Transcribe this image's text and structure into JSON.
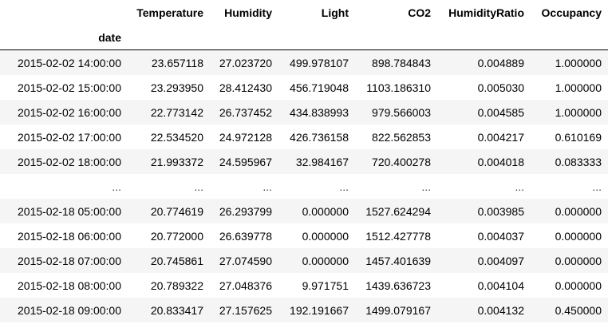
{
  "table": {
    "index_name": "date",
    "columns": [
      "Temperature",
      "Humidity",
      "Light",
      "CO2",
      "HumidityRatio",
      "Occupancy"
    ],
    "rows": [
      [
        "2015-02-02 14:00:00",
        "23.657118",
        "27.023720",
        "499.978107",
        "898.784843",
        "0.004889",
        "1.000000"
      ],
      [
        "2015-02-02 15:00:00",
        "23.293950",
        "28.412430",
        "456.719048",
        "1103.186310",
        "0.005030",
        "1.000000"
      ],
      [
        "2015-02-02 16:00:00",
        "22.773142",
        "26.737452",
        "434.838993",
        "979.566003",
        "0.004585",
        "1.000000"
      ],
      [
        "2015-02-02 17:00:00",
        "22.534520",
        "24.972128",
        "426.736158",
        "822.562853",
        "0.004217",
        "0.610169"
      ],
      [
        "2015-02-02 18:00:00",
        "21.993372",
        "24.595967",
        "32.984167",
        "720.400278",
        "0.004018",
        "0.083333"
      ],
      [
        "...",
        "...",
        "...",
        "...",
        "...",
        "...",
        "..."
      ],
      [
        "2015-02-18 05:00:00",
        "20.774619",
        "26.293799",
        "0.000000",
        "1527.624294",
        "0.003985",
        "0.000000"
      ],
      [
        "2015-02-18 06:00:00",
        "20.772000",
        "26.639778",
        "0.000000",
        "1512.427778",
        "0.004037",
        "0.000000"
      ],
      [
        "2015-02-18 07:00:00",
        "20.745861",
        "27.074590",
        "0.000000",
        "1457.401639",
        "0.004097",
        "0.000000"
      ],
      [
        "2015-02-18 08:00:00",
        "20.789322",
        "27.048376",
        "9.971751",
        "1439.636723",
        "0.004104",
        "0.000000"
      ],
      [
        "2015-02-18 09:00:00",
        "20.833417",
        "27.157625",
        "192.191667",
        "1499.079167",
        "0.004132",
        "0.450000"
      ]
    ]
  }
}
